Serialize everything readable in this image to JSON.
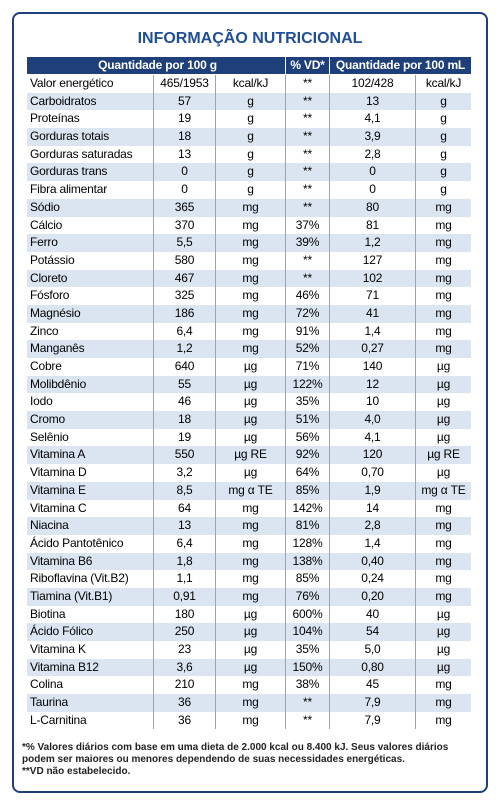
{
  "title": "INFORMAÇÃO NUTRICIONAL",
  "header": [
    "Quantidade por 100 g",
    "% VD*",
    "Quantidade por 100 mL"
  ],
  "table": {
    "rows": [
      [
        "Valor energético",
        "465/1953",
        "kcal/kJ",
        "**",
        "102/428",
        "kcal/kJ"
      ],
      [
        "Carboidratos",
        "57",
        "g",
        "**",
        "13",
        "g"
      ],
      [
        "Proteínas",
        "19",
        "g",
        "**",
        "4,1",
        "g"
      ],
      [
        "Gorduras totais",
        "18",
        "g",
        "**",
        "3,9",
        "g"
      ],
      [
        "Gorduras saturadas",
        "13",
        "g",
        "**",
        "2,8",
        "g"
      ],
      [
        "Gorduras trans",
        "0",
        "g",
        "**",
        "0",
        "g"
      ],
      [
        "Fibra alimentar",
        "0",
        "g",
        "**",
        "0",
        "g"
      ],
      [
        "Sódio",
        "365",
        "mg",
        "**",
        "80",
        "mg"
      ],
      [
        "Cálcio",
        "370",
        "mg",
        "37%",
        "81",
        "mg"
      ],
      [
        "Ferro",
        "5,5",
        "mg",
        "39%",
        "1,2",
        "mg"
      ],
      [
        "Potássio",
        "580",
        "mg",
        "**",
        "127",
        "mg"
      ],
      [
        "Cloreto",
        "467",
        "mg",
        "**",
        "102",
        "mg"
      ],
      [
        "Fósforo",
        "325",
        "mg",
        "46%",
        "71",
        "mg"
      ],
      [
        "Magnésio",
        "186",
        "mg",
        "72%",
        "41",
        "mg"
      ],
      [
        "Zinco",
        "6,4",
        "mg",
        "91%",
        "1,4",
        "mg"
      ],
      [
        "Manganês",
        "1,2",
        "mg",
        "52%",
        "0,27",
        "mg"
      ],
      [
        "Cobre",
        "640",
        "µg",
        "71%",
        "140",
        "µg"
      ],
      [
        "Molibdênio",
        "55",
        "µg",
        "122%",
        "12",
        "µg"
      ],
      [
        "Iodo",
        "46",
        "µg",
        "35%",
        "10",
        "µg"
      ],
      [
        "Cromo",
        "18",
        "µg",
        "51%",
        "4,0",
        "µg"
      ],
      [
        "Selênio",
        "19",
        "µg",
        "56%",
        "4,1",
        "µg"
      ],
      [
        "Vitamina A",
        "550",
        "µg RE",
        "92%",
        "120",
        "µg RE"
      ],
      [
        "Vitamina D",
        "3,2",
        "µg",
        "64%",
        "0,70",
        "µg"
      ],
      [
        "Vitamina E",
        "8,5",
        "mg α TE",
        "85%",
        "1,9",
        "mg α TE"
      ],
      [
        "Vitamina C",
        "64",
        "mg",
        "142%",
        "14",
        "mg"
      ],
      [
        "Niacina",
        "13",
        "mg",
        "81%",
        "2,8",
        "mg"
      ],
      [
        "Ácido Pantotênico",
        "6,4",
        "mg",
        "128%",
        "1,4",
        "mg"
      ],
      [
        "Vitamina B6",
        "1,8",
        "mg",
        "138%",
        "0,40",
        "mg"
      ],
      [
        "Riboflavina (Vit.B2)",
        "1,1",
        "mg",
        "85%",
        "0,24",
        "mg"
      ],
      [
        "Tiamina (Vit.B1)",
        "0,91",
        "mg",
        "76%",
        "0,20",
        "mg"
      ],
      [
        "Biotina",
        "180",
        "µg",
        "600%",
        "40",
        "µg"
      ],
      [
        "Ácido Fólico",
        "250",
        "µg",
        "104%",
        "54",
        "µg"
      ],
      [
        "Vitamina K",
        "23",
        "µg",
        "35%",
        "5,0",
        "µg"
      ],
      [
        "Vitamina B12",
        "3,6",
        "µg",
        "150%",
        "0,80",
        "µg"
      ],
      [
        "Colina",
        "210",
        "mg",
        "38%",
        "45",
        "mg"
      ],
      [
        "Taurina",
        "36",
        "mg",
        "**",
        "7,9",
        "mg"
      ],
      [
        "L-Carnitina",
        "36",
        "mg",
        "**",
        "7,9",
        "mg"
      ]
    ]
  },
  "footnotes": [
    "*% Valores diários com base em uma dieta de 2.000 kcal ou 8.400 kJ. Seus valores diários podem ser maiores ou menores dependendo de suas necessidades energéticas.",
    "**VD não estabelecido."
  ]
}
